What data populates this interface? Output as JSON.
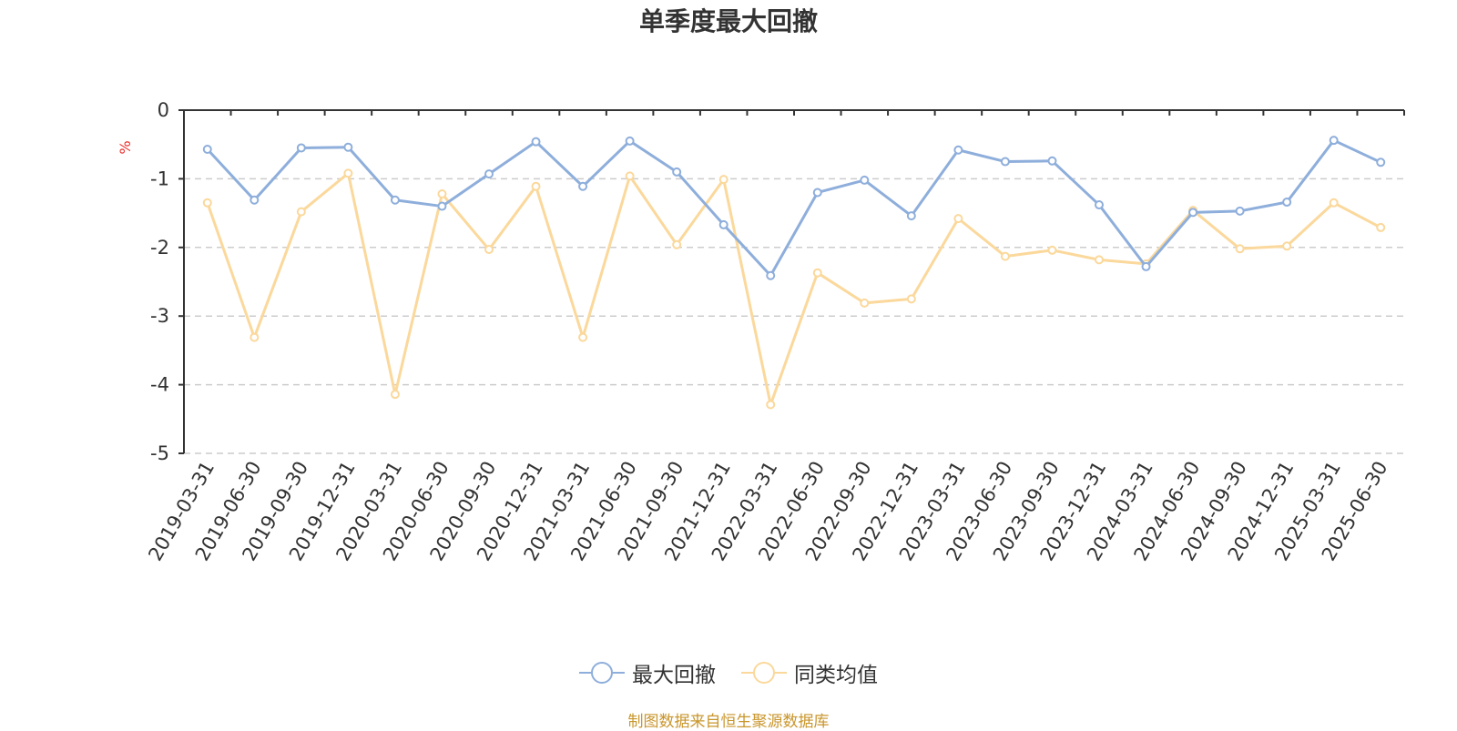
{
  "title": "单季度最大回撤",
  "source_note": "制图数据来自恒生聚源数据库",
  "colors": {
    "series_1": "#8eaedb",
    "series_2": "#fbd89b",
    "axis": "#333333",
    "grid": "#cccccc",
    "unit": "#e8312f",
    "source": "#c9962c"
  },
  "chart_data": {
    "type": "line",
    "title": "单季度最大回撤",
    "ylabel": "%",
    "ylim": [
      -5,
      0
    ],
    "yticks": [
      0,
      -1,
      -2,
      -3,
      -4,
      -5
    ],
    "grid": "horizontal dashed",
    "legend_position": "bottom-center",
    "categories": [
      "2019-03-31",
      "2019-06-30",
      "2019-09-30",
      "2019-12-31",
      "2020-03-31",
      "2020-06-30",
      "2020-09-30",
      "2020-12-31",
      "2021-03-31",
      "2021-06-30",
      "2021-09-30",
      "2021-12-31",
      "2022-03-31",
      "2022-06-30",
      "2022-09-30",
      "2022-12-31",
      "2023-03-31",
      "2023-06-30",
      "2023-09-30",
      "2023-12-31",
      "2024-03-31",
      "2024-06-30",
      "2024-09-30",
      "2024-12-31",
      "2025-03-31",
      "2025-06-30"
    ],
    "series": [
      {
        "name": "最大回撤",
        "values": [
          -0.57,
          -1.31,
          -0.55,
          -0.54,
          -1.31,
          -1.4,
          -0.93,
          -0.46,
          -1.11,
          -0.45,
          -0.9,
          -1.67,
          -2.41,
          -1.2,
          -1.02,
          -1.54,
          -0.58,
          -0.75,
          -0.74,
          -1.38,
          -2.28,
          -1.49,
          -1.47,
          -1.34,
          -0.44,
          -0.76
        ]
      },
      {
        "name": "同类均值",
        "values": [
          -1.35,
          -3.31,
          -1.48,
          -0.92,
          -4.14,
          -1.22,
          -2.03,
          -1.11,
          -3.31,
          -0.96,
          -1.96,
          -1.01,
          -4.29,
          -2.37,
          -2.81,
          -2.75,
          -1.58,
          -2.13,
          -2.04,
          -2.18,
          -2.24,
          -1.46,
          -2.02,
          -1.98,
          -1.35,
          -1.71
        ]
      }
    ]
  }
}
